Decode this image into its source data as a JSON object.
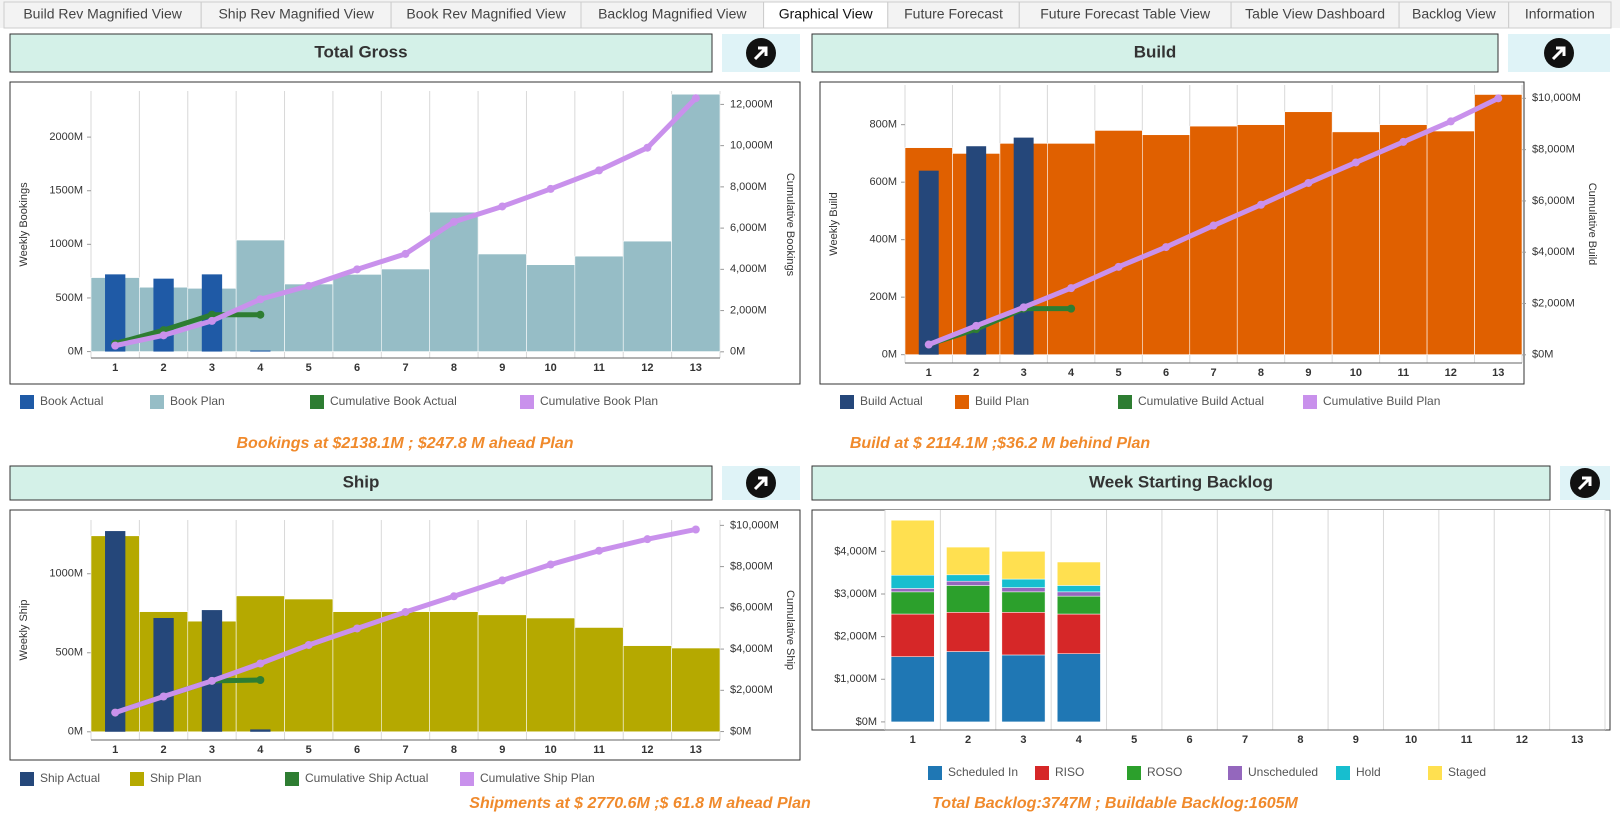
{
  "tabs": [
    "Build Rev Magnified View",
    "Ship Rev Magnified View",
    "Book Rev Magnified View",
    "Backlog Magnified View",
    "Graphical View",
    "Future Forecast",
    "Future Forecast Table View",
    "Table View Dashboard",
    "Backlog View",
    "Information"
  ],
  "active_tab": 4,
  "chart_data": [
    {
      "type": "combo",
      "title": "Total Gross",
      "y_label": "Weekly Bookings",
      "y2_label": "Cumulative Bookings",
      "annotation": "Bookings at $2138.1M ; $247.8 M ahead Plan",
      "categories": [
        "1",
        "2",
        "3",
        "4",
        "5",
        "6",
        "7",
        "8",
        "9",
        "10",
        "11",
        "12",
        "13"
      ],
      "ylim": [
        -60,
        2430
      ],
      "yticks": [
        {
          "value": 0,
          "label": "0M"
        },
        {
          "value": 500,
          "label": "500M"
        },
        {
          "value": 1000,
          "label": "1000M"
        },
        {
          "value": 1500,
          "label": "1500M"
        },
        {
          "value": 2000,
          "label": "2000M"
        }
      ],
      "y2lim": [
        -300,
        12650
      ],
      "y2ticks": [
        {
          "value": 0,
          "label": "0M"
        },
        {
          "value": 2000,
          "label": "2,000M"
        },
        {
          "value": 4000,
          "label": "4,000M"
        },
        {
          "value": 6000,
          "label": "6,000M"
        },
        {
          "value": 8000,
          "label": "8,000M"
        },
        {
          "value": 10000,
          "label": "10,000M"
        },
        {
          "value": 12000,
          "label": "12,000M"
        }
      ],
      "series": [
        {
          "name": "Book Actual",
          "type": "bar",
          "color": "#1f5aa6",
          "values": [
            720,
            680,
            720,
            10,
            null,
            null,
            null,
            null,
            null,
            null,
            null,
            null,
            null
          ]
        },
        {
          "name": "Book Plan",
          "type": "bar",
          "color": "#96bdc6",
          "values": [
            690,
            600,
            590,
            1040,
            630,
            720,
            770,
            1300,
            910,
            810,
            890,
            1030,
            2400
          ]
        },
        {
          "name": "Cumulative  Book Actual",
          "type": "line",
          "axis": "y2",
          "color": "#2e7d32",
          "values": [
            400,
            1050,
            1800,
            1800,
            null,
            null,
            null,
            null,
            null,
            null,
            null,
            null,
            null
          ]
        },
        {
          "name": "Cumulative  Book  Plan",
          "type": "line",
          "axis": "y2",
          "color": "#c991ec",
          "values": [
            300,
            800,
            1500,
            2550,
            3200,
            4000,
            4750,
            6300,
            7050,
            7900,
            8800,
            9900,
            12300
          ]
        }
      ]
    },
    {
      "type": "combo",
      "title": "Build",
      "y_label": "Weekly Build",
      "y2_label": "Cumulative Build",
      "annotation": "Build  at $ 2114.1M ;$36.2 M behind  Plan",
      "categories": [
        "1",
        "2",
        "3",
        "4",
        "5",
        "6",
        "7",
        "8",
        "9",
        "10",
        "11",
        "12",
        "13"
      ],
      "ylim": [
        -29,
        938
      ],
      "yticks": [
        {
          "value": 0,
          "label": "0M"
        },
        {
          "value": 200,
          "label": "200M"
        },
        {
          "value": 400,
          "label": "400M"
        },
        {
          "value": 600,
          "label": "600M"
        },
        {
          "value": 800,
          "label": "800M"
        }
      ],
      "y2lim": [
        -320,
        10520
      ],
      "y2ticks": [
        {
          "value": 0,
          "label": "$0M"
        },
        {
          "value": 2000,
          "label": "$2,000M"
        },
        {
          "value": 4000,
          "label": "$4,000M"
        },
        {
          "value": 6000,
          "label": "$6,000M"
        },
        {
          "value": 8000,
          "label": "$8,000M"
        },
        {
          "value": 10000,
          "label": "$10,000M"
        }
      ],
      "series": [
        {
          "name": "Build Actual",
          "type": "bar",
          "color": "#25477a",
          "values": [
            640,
            725,
            755,
            null,
            null,
            null,
            null,
            null,
            null,
            null,
            null,
            null,
            null
          ]
        },
        {
          "name": "Build Plan",
          "type": "bar",
          "color": "#e06000",
          "values": [
            720,
            700,
            735,
            735,
            780,
            765,
            795,
            800,
            845,
            775,
            800,
            778,
            905
          ]
        },
        {
          "name": "Cumulative Build Actual",
          "type": "line",
          "axis": "y2",
          "color": "#2e7d32",
          "values": [
            400,
            1000,
            1800,
            1800,
            null,
            null,
            null,
            null,
            null,
            null,
            null,
            null,
            null
          ]
        },
        {
          "name": "Cumulative Build Plan",
          "type": "line",
          "axis": "y2",
          "color": "#c991ec",
          "values": [
            400,
            1130,
            1850,
            2600,
            3430,
            4200,
            5040,
            5850,
            6700,
            7500,
            8300,
            9100,
            10000
          ]
        }
      ]
    },
    {
      "type": "combo",
      "title": "Ship",
      "y_label": "Weekly Ship",
      "y2_label": "Cumulative Ship",
      "annotation": "Shipments at  $ 2770.6M  ;$ 61.8 M ahead Plan",
      "categories": [
        "1",
        "2",
        "3",
        "4",
        "5",
        "6",
        "7",
        "8",
        "9",
        "10",
        "11",
        "12",
        "13"
      ],
      "ylim": [
        -52,
        1340
      ],
      "yticks": [
        {
          "value": 0,
          "label": "0M"
        },
        {
          "value": 500,
          "label": "500M"
        },
        {
          "value": 1000,
          "label": "1000M"
        }
      ],
      "y2lim": [
        -410,
        10260
      ],
      "y2ticks": [
        {
          "value": 0,
          "label": "$0M"
        },
        {
          "value": 2000,
          "label": "$2,000M"
        },
        {
          "value": 4000,
          "label": "$4,000M"
        },
        {
          "value": 6000,
          "label": "$6,000M"
        },
        {
          "value": 8000,
          "label": "$8,000M"
        },
        {
          "value": 10000,
          "label": "$10,000M"
        }
      ],
      "series": [
        {
          "name": "Ship Actual",
          "type": "bar",
          "color": "#25477a",
          "values": [
            1270,
            720,
            770,
            15,
            null,
            null,
            null,
            null,
            null,
            null,
            null,
            null,
            null
          ]
        },
        {
          "name": "Ship Plan",
          "type": "bar",
          "color": "#b5a900",
          "values": [
            1240,
            760,
            700,
            860,
            840,
            760,
            760,
            760,
            740,
            720,
            660,
            545,
            530
          ]
        },
        {
          "name": "Cumulative Ship Actual",
          "type": "line",
          "axis": "y2",
          "color": "#2e7d32",
          "values": [
            920,
            1700,
            2460,
            2500,
            null,
            null,
            null,
            null,
            null,
            null,
            null,
            null,
            null
          ]
        },
        {
          "name": "Cumulative Ship Plan",
          "type": "line",
          "axis": "y2",
          "color": "#c991ec",
          "values": [
            920,
            1700,
            2460,
            3300,
            4200,
            5000,
            5800,
            6560,
            7330,
            8100,
            8770,
            9330,
            9800
          ]
        }
      ]
    },
    {
      "type": "stacked_bar",
      "title": "Week Starting Backlog",
      "annotation": "Total Backlog:3747M ; Buildable Backlog:1605M",
      "categories": [
        "1",
        "2",
        "3",
        "4",
        "5",
        "6",
        "7",
        "8",
        "9",
        "10",
        "11",
        "12",
        "13"
      ],
      "ylim": [
        -190,
        4970
      ],
      "yticks": [
        {
          "value": 0,
          "label": "$0M"
        },
        {
          "value": 1000,
          "label": "$1,000M"
        },
        {
          "value": 2000,
          "label": "$2,000M"
        },
        {
          "value": 3000,
          "label": "$3,000M"
        },
        {
          "value": 4000,
          "label": "$4,000M"
        }
      ],
      "series": [
        {
          "name": "Scheduled In",
          "color": "#1f77b4",
          "values": [
            1530,
            1650,
            1570,
            1600,
            null,
            null,
            null,
            null,
            null,
            null,
            null,
            null,
            null
          ]
        },
        {
          "name": "RISO",
          "color": "#d62728",
          "values": [
            1000,
            920,
            1000,
            930,
            null,
            null,
            null,
            null,
            null,
            null,
            null,
            null,
            null
          ]
        },
        {
          "name": "ROSO",
          "color": "#2ca02c",
          "values": [
            520,
            630,
            480,
            420,
            null,
            null,
            null,
            null,
            null,
            null,
            null,
            null,
            null
          ]
        },
        {
          "name": "Unscheduled",
          "color": "#9467bd",
          "values": [
            80,
            100,
            100,
            100,
            null,
            null,
            null,
            null,
            null,
            null,
            null,
            null,
            null
          ]
        },
        {
          "name": "Hold",
          "color": "#17becf",
          "values": [
            310,
            150,
            200,
            150,
            null,
            null,
            null,
            null,
            null,
            null,
            null,
            null,
            null
          ]
        },
        {
          "name": "Staged",
          "color": "#ffe050",
          "values": [
            1290,
            650,
            650,
            550,
            null,
            null,
            null,
            null,
            null,
            null,
            null,
            null,
            null
          ]
        }
      ]
    }
  ]
}
